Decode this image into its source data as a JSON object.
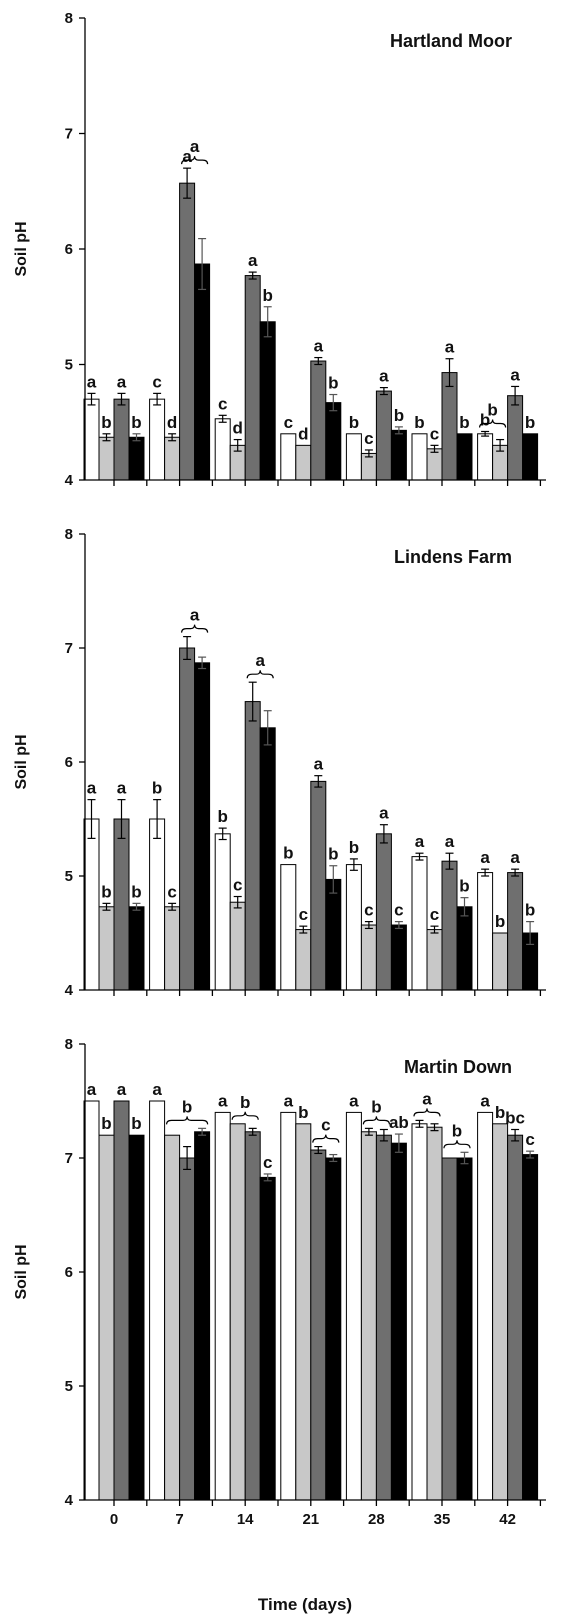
{
  "colors": {
    "axis": "#000000",
    "series": [
      "#ffffff",
      "#c8c8c8",
      "#6f6f6f",
      "#000000"
    ],
    "bar_stroke": "#000000"
  },
  "xlabel": "Time (days)",
  "chart_data": [
    {
      "type": "bar",
      "title": "Hartland Moor",
      "ylabel": "Soil pH",
      "xlabel": "",
      "ylim": [
        4,
        8
      ],
      "yticks": [
        4,
        5,
        6,
        7,
        8
      ],
      "categories": [
        "0",
        "7",
        "14",
        "21",
        "28",
        "35",
        "42"
      ],
      "series": [
        {
          "values": [
            4.7,
            4.7,
            4.53,
            4.4,
            4.4,
            4.4,
            4.4
          ],
          "errors": [
            0.05,
            0.05,
            0.03,
            0.0,
            0.0,
            0.0,
            0.02
          ]
        },
        {
          "values": [
            4.37,
            4.37,
            4.3,
            4.3,
            4.23,
            4.27,
            4.3
          ],
          "errors": [
            0.03,
            0.03,
            0.05,
            0.0,
            0.03,
            0.03,
            0.05
          ]
        },
        {
          "values": [
            4.7,
            6.57,
            5.77,
            5.03,
            4.77,
            4.93,
            4.73
          ],
          "errors": [
            0.05,
            0.13,
            0.03,
            0.03,
            0.03,
            0.12,
            0.08
          ]
        },
        {
          "values": [
            4.37,
            5.87,
            5.37,
            4.67,
            4.43,
            4.4,
            4.4
          ],
          "errors": [
            0.03,
            0.22,
            0.13,
            0.07,
            0.03,
            0.0,
            0.0
          ]
        }
      ],
      "labels": [
        [
          "a",
          "c",
          "c",
          "c",
          "b",
          "b",
          "b"
        ],
        [
          "b",
          "d",
          "d",
          "d",
          "c",
          "c",
          ""
        ],
        [
          "a",
          "a",
          "a",
          "a",
          "a",
          "a",
          "a"
        ],
        [
          "b",
          "",
          "b",
          "b",
          "b",
          "b",
          "b"
        ]
      ],
      "brackets": [
        {
          "group": 1,
          "from": 2,
          "to": 3,
          "label": "a"
        },
        {
          "group": 6,
          "from": 0,
          "to": 1,
          "label": "b"
        }
      ]
    },
    {
      "type": "bar",
      "title": "Lindens Farm",
      "ylabel": "Soil pH",
      "xlabel": "",
      "ylim": [
        4,
        8
      ],
      "yticks": [
        4,
        5,
        6,
        7,
        8
      ],
      "categories": [
        "0",
        "7",
        "14",
        "21",
        "28",
        "35",
        "42"
      ],
      "series": [
        {
          "values": [
            5.5,
            5.5,
            5.37,
            5.1,
            5.1,
            5.17,
            5.03
          ],
          "errors": [
            0.17,
            0.17,
            0.05,
            0.0,
            0.05,
            0.03,
            0.03
          ]
        },
        {
          "values": [
            4.73,
            4.73,
            4.77,
            4.53,
            4.57,
            4.53,
            4.5
          ],
          "errors": [
            0.03,
            0.03,
            0.05,
            0.03,
            0.03,
            0.03,
            0.0
          ]
        },
        {
          "values": [
            5.5,
            7.0,
            6.53,
            5.83,
            5.37,
            5.13,
            5.03
          ],
          "errors": [
            0.17,
            0.1,
            0.17,
            0.05,
            0.08,
            0.07,
            0.03
          ]
        },
        {
          "values": [
            4.73,
            6.87,
            6.3,
            4.97,
            4.57,
            4.73,
            4.5
          ],
          "errors": [
            0.03,
            0.05,
            0.15,
            0.12,
            0.03,
            0.08,
            0.1
          ]
        }
      ],
      "labels": [
        [
          "a",
          "b",
          "b",
          "b",
          "b",
          "a",
          "a"
        ],
        [
          "b",
          "c",
          "c",
          "c",
          "c",
          "c",
          "b"
        ],
        [
          "a",
          "",
          "",
          "a",
          "a",
          "a",
          "a"
        ],
        [
          "b",
          "",
          "",
          "b",
          "c",
          "b",
          "b"
        ]
      ],
      "brackets": [
        {
          "group": 1,
          "from": 2,
          "to": 3,
          "label": "a"
        },
        {
          "group": 2,
          "from": 2,
          "to": 3,
          "label": "a"
        }
      ]
    },
    {
      "type": "bar",
      "title": "Martin Down",
      "ylabel": "Soil pH",
      "xlabel": "",
      "ylim": [
        4,
        8
      ],
      "yticks": [
        4,
        5,
        6,
        7,
        8
      ],
      "categories": [
        "0",
        "7",
        "14",
        "21",
        "28",
        "35",
        "42"
      ],
      "series": [
        {
          "values": [
            7.5,
            7.5,
            7.4,
            7.4,
            7.4,
            7.3,
            7.4
          ],
          "errors": [
            0.0,
            0.0,
            0.0,
            0.0,
            0.0,
            0.03,
            0.0
          ]
        },
        {
          "values": [
            7.2,
            7.2,
            7.3,
            7.3,
            7.23,
            7.27,
            7.3
          ],
          "errors": [
            0.0,
            0.0,
            0.0,
            0.0,
            0.03,
            0.03,
            0.0
          ]
        },
        {
          "values": [
            7.5,
            7.0,
            7.23,
            7.07,
            7.2,
            7.0,
            7.2
          ],
          "errors": [
            0.0,
            0.1,
            0.03,
            0.03,
            0.05,
            0.0,
            0.05
          ]
        },
        {
          "values": [
            7.2,
            7.23,
            6.83,
            7.0,
            7.13,
            7.0,
            7.03
          ],
          "errors": [
            0.0,
            0.03,
            0.03,
            0.03,
            0.08,
            0.05,
            0.03
          ]
        }
      ],
      "labels": [
        [
          "a",
          "a",
          "a",
          "a",
          "a",
          "",
          "a"
        ],
        [
          "b",
          "",
          "",
          "b",
          "",
          "",
          "b"
        ],
        [
          "a",
          "",
          "",
          "",
          "",
          "",
          "bc"
        ],
        [
          "b",
          "",
          "c",
          "",
          "ab",
          "",
          "c"
        ]
      ],
      "brackets": [
        {
          "group": 1,
          "from": 1,
          "to": 3,
          "label": "b"
        },
        {
          "group": 2,
          "from": 1,
          "to": 2,
          "label": "b"
        },
        {
          "group": 3,
          "from": 2,
          "to": 3,
          "label": "c"
        },
        {
          "group": 4,
          "from": 1,
          "to": 2,
          "label": "b"
        },
        {
          "group": 5,
          "from": 0,
          "to": 1,
          "label": "a"
        },
        {
          "group": 5,
          "from": 2,
          "to": 3,
          "label": "b"
        }
      ]
    }
  ]
}
